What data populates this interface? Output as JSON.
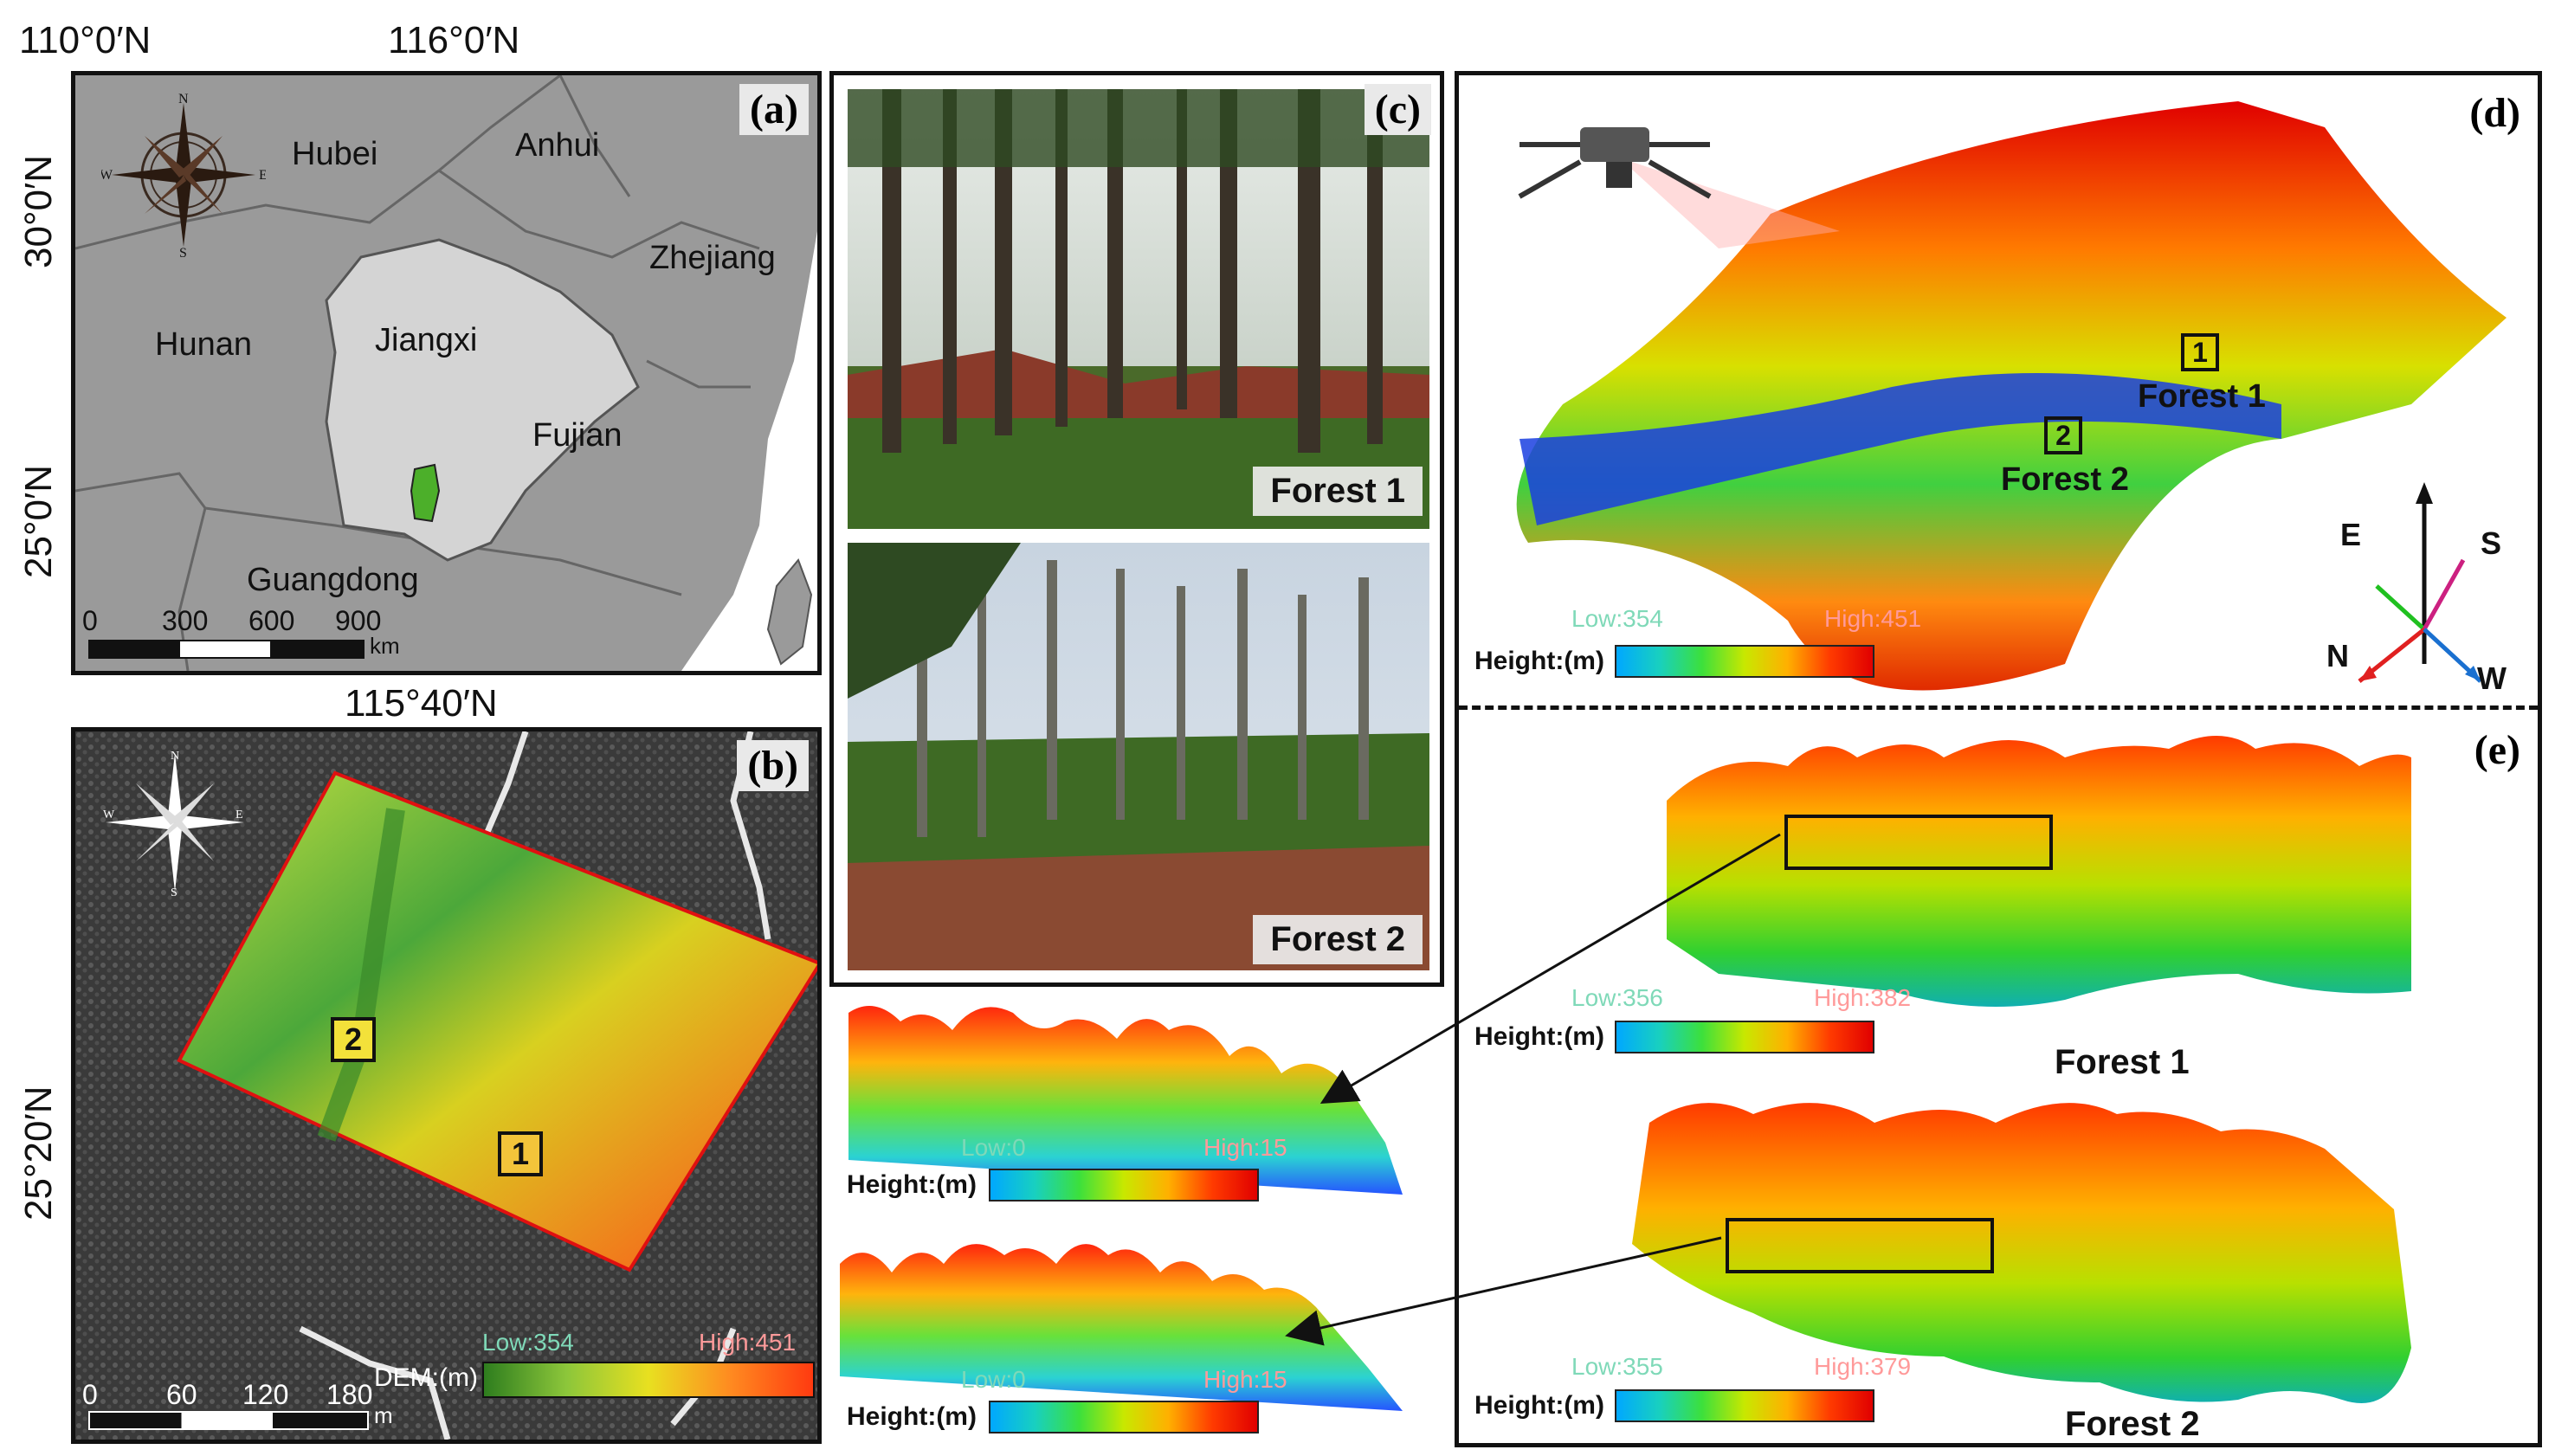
{
  "coords": {
    "a_top_left": "110°0′N",
    "a_top_right": "116°0′N",
    "a_left_upper": "30°0′N",
    "a_left_lower": "25°0′N",
    "b_top": "115°40′N",
    "b_left": "25°20′N"
  },
  "panel_a": {
    "label": "(a)",
    "provinces": [
      "Hubei",
      "Anhui",
      "Zhejiang",
      "Hunan",
      "Jiangxi",
      "Fujian",
      "Guangdong"
    ],
    "scale_numbers": [
      "0",
      "300",
      "600",
      "900"
    ],
    "scale_unit": "km",
    "compass": [
      "N",
      "S",
      "E",
      "W"
    ]
  },
  "panel_b": {
    "label": "(b)",
    "plot_labels": [
      "2",
      "1"
    ],
    "scale_numbers": [
      "0",
      "60",
      "120",
      "180"
    ],
    "scale_unit": "m",
    "legend_title": "DEM:(m)",
    "low": "Low:354",
    "high": "High:451",
    "compass": [
      "N",
      "S",
      "E",
      "W"
    ]
  },
  "panel_c": {
    "label": "(c)",
    "photo1_caption": "Forest 1",
    "photo2_caption": "Forest 2"
  },
  "profiles": {
    "top": {
      "legend_title": "Height:(m)",
      "low": "Low:0",
      "high": "High:15"
    },
    "bottom": {
      "legend_title": "Height:(m)",
      "low": "Low:0",
      "high": "High:15"
    }
  },
  "panel_d": {
    "label": "(d)",
    "forest1_num": "1",
    "forest1_label": "Forest 1",
    "forest2_num": "2",
    "forest2_label": "Forest 2",
    "legend_title": "Height:(m)",
    "low": "Low:354",
    "high": "High:451",
    "axes": {
      "e": "E",
      "s": "S",
      "n": "N",
      "w": "W"
    }
  },
  "panel_e": {
    "label": "(e)",
    "forest1": {
      "legend_title": "Height:(m)",
      "low": "Low:356",
      "high": "High:382",
      "caption": "Forest 1"
    },
    "forest2": {
      "legend_title": "Height:(m)",
      "low": "Low:355",
      "high": "High:379",
      "caption": "Forest 2"
    }
  },
  "colors": {
    "map_bg": "#9a9a9a",
    "jiangxi": "#d4d4d4",
    "study_area": "#4caf2a",
    "sea": "#ffffff",
    "dem_low": "#3a8a2a",
    "dem_high": "#ff4a1a",
    "ortho_bg": "#3c3c3c"
  }
}
